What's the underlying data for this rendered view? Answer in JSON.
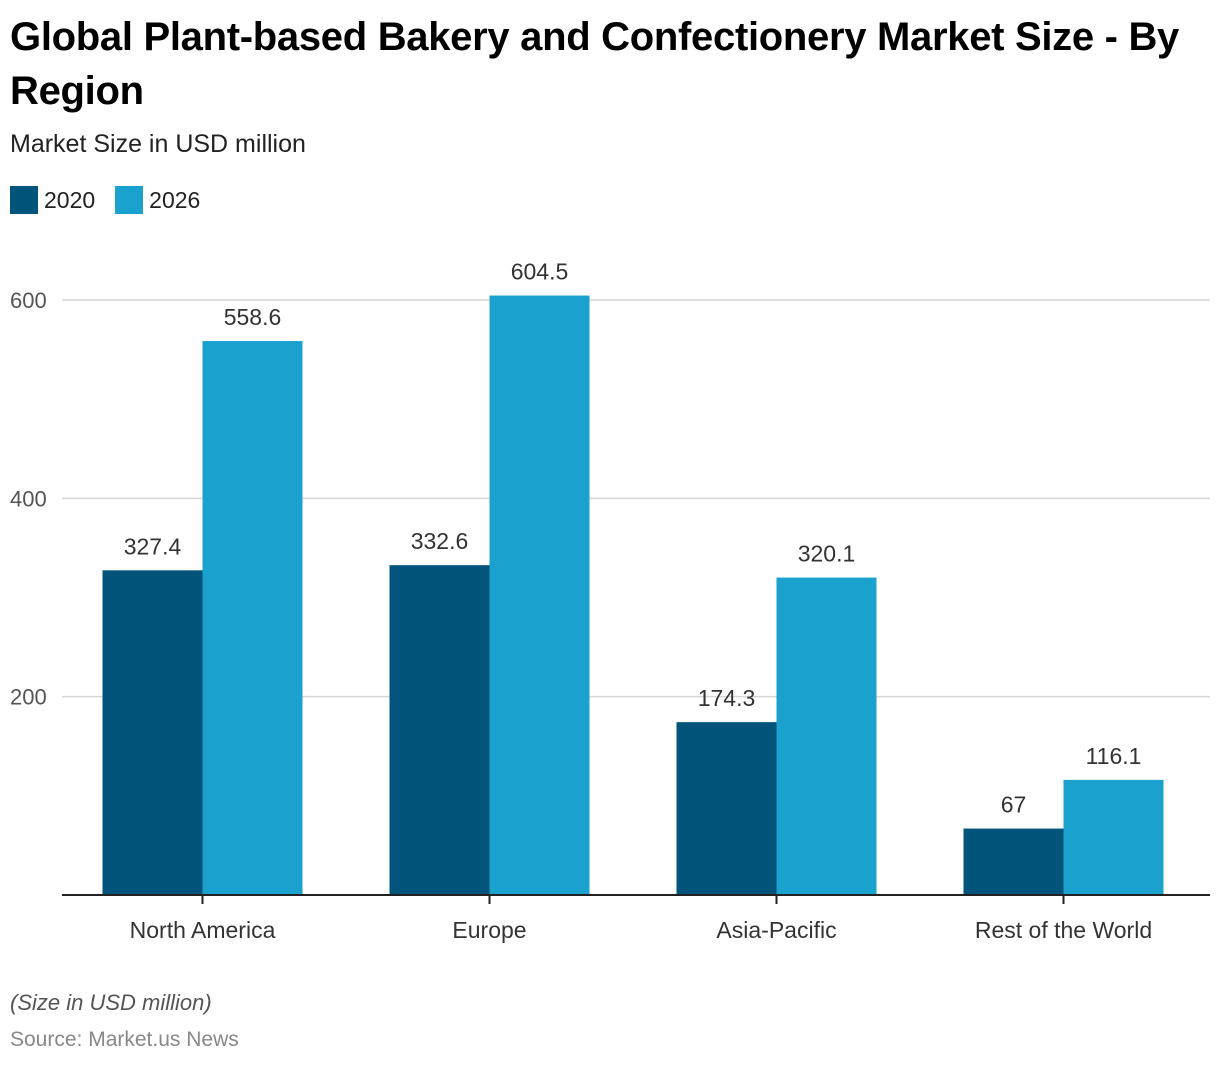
{
  "header": {
    "title": "Global Plant-based Bakery and Confectionery Market Size - By Region",
    "subtitle": "Market Size in USD million"
  },
  "footer": {
    "note": "(Size in USD million)",
    "source": "Source: Market.us News"
  },
  "chart_data": {
    "type": "bar",
    "title": "Global Plant-based Bakery and Confectionery Market Size - By Region",
    "subtitle": "Market Size in USD million",
    "xlabel": "",
    "ylabel": "",
    "categories": [
      "North America",
      "Europe",
      "Asia-Pacific",
      "Rest of the World"
    ],
    "series": [
      {
        "name": "2020",
        "color": "#02547b",
        "values": [
          327.4,
          332.6,
          174.3,
          67
        ],
        "labels": [
          "327.4",
          "332.6",
          "174.3",
          "67"
        ]
      },
      {
        "name": "2026",
        "color": "#1aa1cd",
        "values": [
          558.6,
          604.5,
          320.1,
          116.1
        ],
        "labels": [
          "558.6",
          "604.5",
          "320.1",
          "116.1"
        ]
      }
    ],
    "ylim": [
      0,
      600
    ],
    "yticks": [
      200,
      400,
      600
    ],
    "ytick_labels": [
      "200",
      "400",
      "600"
    ],
    "grid": true,
    "legend": "top-left",
    "data_labels": true
  }
}
